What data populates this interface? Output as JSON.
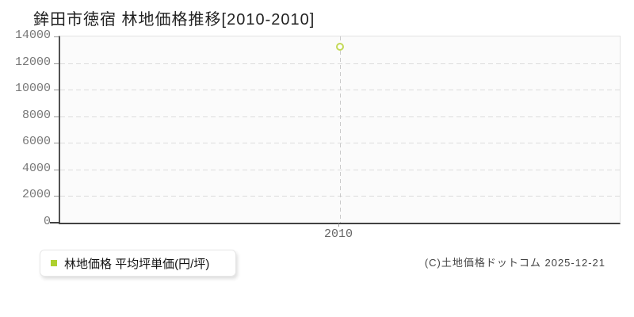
{
  "title": "鉾田市徳宿 林地価格推移[2010-2010]",
  "legend": {
    "label": "林地価格 平均坪単価(円/坪)"
  },
  "copyright": "(C)土地価格ドットコム 2025-12-21",
  "colors": {
    "accent_green": "#aed02f",
    "point_ring": "#c3d957",
    "gridline": "#dcdcdc",
    "guide_line": "#c9c9c9",
    "axis_dark": "#424242",
    "plot_background": "#fbfbfb",
    "plot_border_light": "#e2e2e2",
    "tick_label": "#777777"
  },
  "chart_data": {
    "type": "scatter",
    "title": "鉾田市徳宿 林地価格推移[2010-2010]",
    "x": [
      2010
    ],
    "x_tick_labels": [
      "2010"
    ],
    "series": [
      {
        "name": "林地価格 平均坪単価(円/坪)",
        "values": [
          13200
        ],
        "marker": "open-circle",
        "color": "#c3d957"
      }
    ],
    "y_ticks": [
      0,
      2000,
      4000,
      6000,
      8000,
      10000,
      12000,
      14000
    ],
    "ylim": [
      0,
      14000
    ],
    "xlabel": "",
    "ylabel": "",
    "grid": "horizontal-dashed",
    "guide_lines": "vertical-dashed-at-each-x",
    "legend_position": "bottom-left-outside"
  }
}
